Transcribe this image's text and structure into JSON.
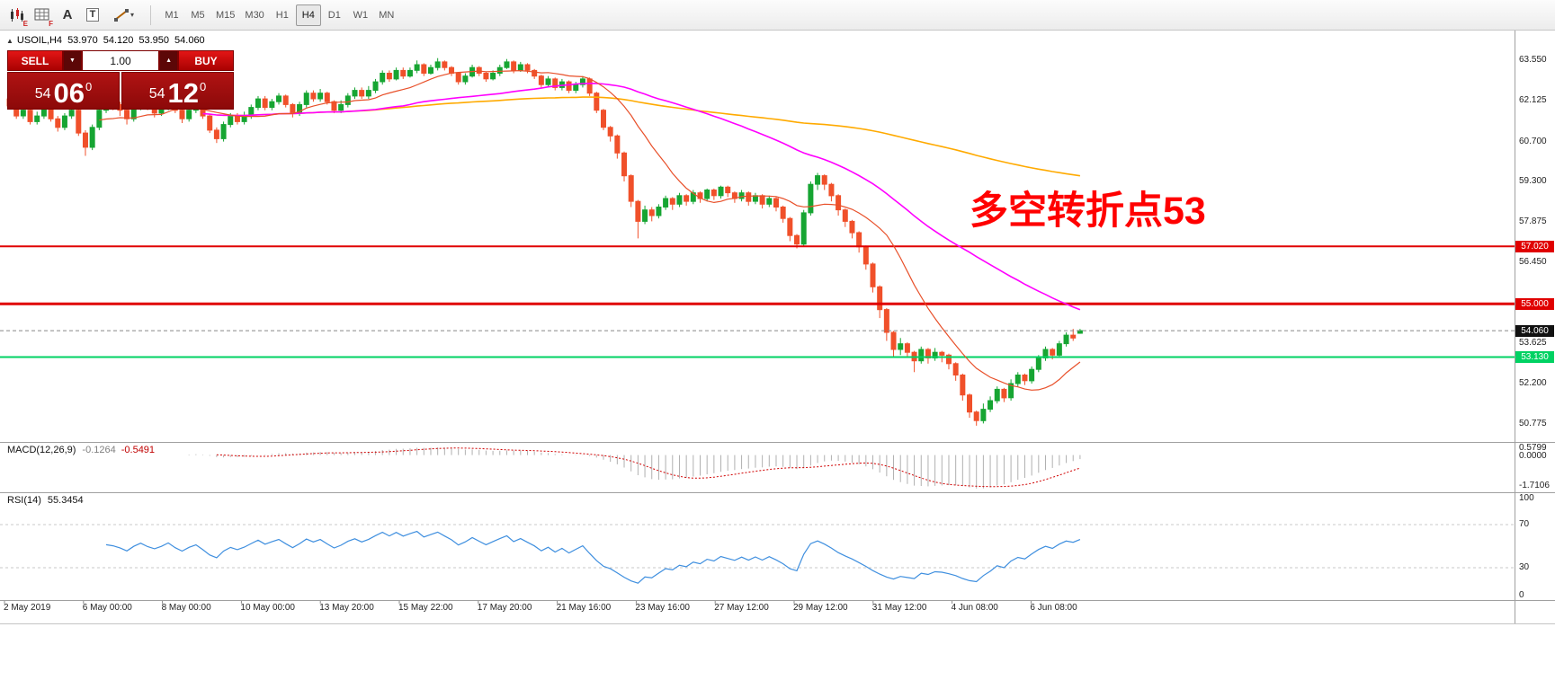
{
  "toolbar": {
    "icons": [
      {
        "name": "chart-objects-icon",
        "sub": "E"
      },
      {
        "name": "indicators-icon",
        "sub": "F"
      },
      {
        "name": "text-label-icon",
        "label": "A"
      },
      {
        "name": "text-box-icon",
        "label": "T"
      },
      {
        "name": "shapes-icon",
        "caret": "▾"
      }
    ],
    "timeframes": [
      "M1",
      "M5",
      "M15",
      "M30",
      "H1",
      "H4",
      "D1",
      "W1",
      "MN"
    ],
    "active_timeframe": "H4"
  },
  "symbol_header": {
    "collapse_icon": "▲",
    "symbol": "USOIL,H4",
    "open": "53.970",
    "high": "54.120",
    "low": "53.950",
    "close": "54.060"
  },
  "trade_panel": {
    "sell_label": "SELL",
    "buy_label": "BUY",
    "volume": "1.00",
    "caret_down": "▼",
    "caret_up": "▲",
    "bid": {
      "main": "54",
      "pips": "06",
      "sup": "0"
    },
    "ask": {
      "main": "54",
      "pips": "12",
      "sup": "0"
    }
  },
  "annotation": {
    "text": "多空转折点53",
    "color": "#ff0000"
  },
  "chart_data": {
    "type": "candlestick",
    "symbol": "USOIL",
    "timeframe": "H4",
    "y_range": [
      50.15,
      64.6
    ],
    "y_axis_labels": [
      "63.550",
      "62.125",
      "60.700",
      "59.300",
      "57.875",
      "56.450",
      "53.625",
      "52.200",
      "50.775"
    ],
    "x_axis_labels": [
      "2 May 2019",
      "6 May 00:00",
      "8 May 00:00",
      "10 May 00:00",
      "13 May 20:00",
      "15 May 22:00",
      "17 May 20:00",
      "21 May 16:00",
      "23 May 16:00",
      "27 May 12:00",
      "29 May 12:00",
      "31 May 12:00",
      "4 Jun 08:00",
      "6 Jun 08:00"
    ],
    "current_price": {
      "value": 54.06,
      "label": "54.060"
    },
    "hlines": [
      {
        "value": 57.02,
        "label": "57.020",
        "color": "#e00000",
        "width": 2
      },
      {
        "value": 55.0,
        "label": "55.000",
        "color": "#e00000",
        "width": 3
      },
      {
        "value": 53.13,
        "label": "53.130",
        "color": "#00d263",
        "width": 2
      }
    ],
    "colors": {
      "up": "#16a532",
      "down": "#f0502a"
    },
    "moving_averages": [
      {
        "name": "slow-ma",
        "period": 400,
        "start": 30,
        "color": "#ffaa00",
        "width": 1.6
      },
      {
        "name": "mid-ma",
        "period": 48,
        "start": 28,
        "color": "#ff00ff",
        "width": 1.6
      },
      {
        "name": "fast-ma",
        "period": 13,
        "start": 13,
        "color": "#e8502a",
        "width": 1.2
      }
    ],
    "candles": [
      [
        62.2,
        62.35,
        61.85,
        61.95
      ],
      [
        61.95,
        62.1,
        61.5,
        61.6
      ],
      [
        61.6,
        61.95,
        61.5,
        61.8
      ],
      [
        61.8,
        61.9,
        61.3,
        61.4
      ],
      [
        61.4,
        61.75,
        61.3,
        61.6
      ],
      [
        61.6,
        62.0,
        61.5,
        61.9
      ],
      [
        61.9,
        62.0,
        61.4,
        61.5
      ],
      [
        61.5,
        61.6,
        61.05,
        61.2
      ],
      [
        61.2,
        61.7,
        61.1,
        61.6
      ],
      [
        61.6,
        61.95,
        61.5,
        61.8
      ],
      [
        61.8,
        61.85,
        60.9,
        61.0
      ],
      [
        61.0,
        61.1,
        60.2,
        60.5
      ],
      [
        60.5,
        61.3,
        60.4,
        61.2
      ],
      [
        61.2,
        61.9,
        61.1,
        61.8
      ],
      [
        61.8,
        62.2,
        61.7,
        62.1
      ],
      [
        62.1,
        62.2,
        61.8,
        62.0
      ],
      [
        62.0,
        62.1,
        61.6,
        61.8
      ],
      [
        61.8,
        61.9,
        61.3,
        61.5
      ],
      [
        61.5,
        62.0,
        61.4,
        61.9
      ],
      [
        61.9,
        62.3,
        61.8,
        62.2
      ],
      [
        62.2,
        62.3,
        61.8,
        61.9
      ],
      [
        61.9,
        62.0,
        61.55,
        61.7
      ],
      [
        61.7,
        62.0,
        61.6,
        61.9
      ],
      [
        61.9,
        62.3,
        61.8,
        62.2
      ],
      [
        62.2,
        62.3,
        61.7,
        61.8
      ],
      [
        61.8,
        61.9,
        61.35,
        61.5
      ],
      [
        61.5,
        61.9,
        61.4,
        61.8
      ],
      [
        61.8,
        62.1,
        61.7,
        62.0
      ],
      [
        62.0,
        62.05,
        61.5,
        61.6
      ],
      [
        61.6,
        61.65,
        61.0,
        61.1
      ],
      [
        61.1,
        61.2,
        60.65,
        60.8
      ],
      [
        60.8,
        61.4,
        60.7,
        61.3
      ],
      [
        61.3,
        61.7,
        61.2,
        61.6
      ],
      [
        61.6,
        61.7,
        61.3,
        61.4
      ],
      [
        61.4,
        61.75,
        61.3,
        61.6
      ],
      [
        61.6,
        62.0,
        61.5,
        61.9
      ],
      [
        61.9,
        62.3,
        61.8,
        62.2
      ],
      [
        62.2,
        62.3,
        61.8,
        61.9
      ],
      [
        61.9,
        62.2,
        61.8,
        62.1
      ],
      [
        62.1,
        62.4,
        62.0,
        62.3
      ],
      [
        62.3,
        62.35,
        61.9,
        62.0
      ],
      [
        62.0,
        62.05,
        61.55,
        61.7
      ],
      [
        61.7,
        62.1,
        61.6,
        62.0
      ],
      [
        62.0,
        62.5,
        61.9,
        62.4
      ],
      [
        62.4,
        62.5,
        62.1,
        62.2
      ],
      [
        62.2,
        62.55,
        62.1,
        62.4
      ],
      [
        62.4,
        62.45,
        62.0,
        62.1
      ],
      [
        62.1,
        62.15,
        61.7,
        61.8
      ],
      [
        61.8,
        62.15,
        61.7,
        62.0
      ],
      [
        62.0,
        62.4,
        61.9,
        62.3
      ],
      [
        62.3,
        62.6,
        62.2,
        62.5
      ],
      [
        62.5,
        62.6,
        62.2,
        62.3
      ],
      [
        62.3,
        62.65,
        62.2,
        62.5
      ],
      [
        62.5,
        62.9,
        62.4,
        62.8
      ],
      [
        62.8,
        63.2,
        62.7,
        63.1
      ],
      [
        63.1,
        63.2,
        62.8,
        62.9
      ],
      [
        62.9,
        63.3,
        62.85,
        63.2
      ],
      [
        63.2,
        63.3,
        62.9,
        63.0
      ],
      [
        63.0,
        63.3,
        62.95,
        63.2
      ],
      [
        63.2,
        63.55,
        63.1,
        63.4
      ],
      [
        63.4,
        63.45,
        63.0,
        63.1
      ],
      [
        63.1,
        63.4,
        63.05,
        63.3
      ],
      [
        63.3,
        63.63,
        63.2,
        63.5
      ],
      [
        63.5,
        63.55,
        63.2,
        63.3
      ],
      [
        63.3,
        63.35,
        63.0,
        63.1
      ],
      [
        63.1,
        63.15,
        62.7,
        62.8
      ],
      [
        62.8,
        63.1,
        62.7,
        63.0
      ],
      [
        63.0,
        63.4,
        62.95,
        63.3
      ],
      [
        63.3,
        63.35,
        63.0,
        63.1
      ],
      [
        63.1,
        63.15,
        62.8,
        62.9
      ],
      [
        62.9,
        63.2,
        62.85,
        63.1
      ],
      [
        63.1,
        63.4,
        63.0,
        63.3
      ],
      [
        63.3,
        63.6,
        63.25,
        63.5
      ],
      [
        63.5,
        63.55,
        63.1,
        63.2
      ],
      [
        63.2,
        63.5,
        63.15,
        63.4
      ],
      [
        63.4,
        63.45,
        63.1,
        63.2
      ],
      [
        63.2,
        63.25,
        62.9,
        63.0
      ],
      [
        63.0,
        63.05,
        62.6,
        62.7
      ],
      [
        62.7,
        63.0,
        62.6,
        62.9
      ],
      [
        62.9,
        62.95,
        62.5,
        62.6
      ],
      [
        62.6,
        62.9,
        62.5,
        62.8
      ],
      [
        62.8,
        62.85,
        62.4,
        62.5
      ],
      [
        62.5,
        62.8,
        62.4,
        62.7
      ],
      [
        62.7,
        63.0,
        62.6,
        62.9
      ],
      [
        62.9,
        62.95,
        62.3,
        62.4
      ],
      [
        62.4,
        62.45,
        61.7,
        61.8
      ],
      [
        61.8,
        61.85,
        61.1,
        61.2
      ],
      [
        61.2,
        61.25,
        60.7,
        60.9
      ],
      [
        60.9,
        60.95,
        60.1,
        60.3
      ],
      [
        60.3,
        60.35,
        59.3,
        59.5
      ],
      [
        59.5,
        59.55,
        58.4,
        58.6
      ],
      [
        58.6,
        58.65,
        57.3,
        57.9
      ],
      [
        57.9,
        58.45,
        57.8,
        58.3
      ],
      [
        58.3,
        58.4,
        57.9,
        58.1
      ],
      [
        58.1,
        58.5,
        58.0,
        58.4
      ],
      [
        58.4,
        58.8,
        58.3,
        58.7
      ],
      [
        58.7,
        58.75,
        58.3,
        58.5
      ],
      [
        58.5,
        58.9,
        58.4,
        58.8
      ],
      [
        58.8,
        58.85,
        58.45,
        58.6
      ],
      [
        58.6,
        59.0,
        58.5,
        58.9
      ],
      [
        58.9,
        58.95,
        58.55,
        58.7
      ],
      [
        58.7,
        59.05,
        58.6,
        59.0
      ],
      [
        59.0,
        59.05,
        58.65,
        58.8
      ],
      [
        58.8,
        59.15,
        58.7,
        59.1
      ],
      [
        59.1,
        59.15,
        58.75,
        58.9
      ],
      [
        58.9,
        58.95,
        58.55,
        58.7
      ],
      [
        58.7,
        59.0,
        58.6,
        58.9
      ],
      [
        58.9,
        58.95,
        58.45,
        58.6
      ],
      [
        58.6,
        58.9,
        58.5,
        58.8
      ],
      [
        58.8,
        58.85,
        58.35,
        58.5
      ],
      [
        58.5,
        58.8,
        58.4,
        58.7
      ],
      [
        58.7,
        58.75,
        58.25,
        58.4
      ],
      [
        58.4,
        58.45,
        57.85,
        58.0
      ],
      [
        58.0,
        58.05,
        57.2,
        57.4
      ],
      [
        57.4,
        57.45,
        56.95,
        57.1
      ],
      [
        57.1,
        58.3,
        57.0,
        58.2
      ],
      [
        58.2,
        59.3,
        58.1,
        59.2
      ],
      [
        59.2,
        59.6,
        59.0,
        59.5
      ],
      [
        59.5,
        59.55,
        59.0,
        59.2
      ],
      [
        59.2,
        59.25,
        58.6,
        58.8
      ],
      [
        58.8,
        58.85,
        58.1,
        58.3
      ],
      [
        58.3,
        58.35,
        57.7,
        57.9
      ],
      [
        57.9,
        57.95,
        57.3,
        57.5
      ],
      [
        57.5,
        57.55,
        56.8,
        57.0
      ],
      [
        57.0,
        57.05,
        56.2,
        56.4
      ],
      [
        56.4,
        56.45,
        55.4,
        55.6
      ],
      [
        55.6,
        55.65,
        54.5,
        54.8
      ],
      [
        54.8,
        54.85,
        53.7,
        54.0
      ],
      [
        54.0,
        54.05,
        53.15,
        53.4
      ],
      [
        53.4,
        53.8,
        53.2,
        53.6
      ],
      [
        53.6,
        53.65,
        53.1,
        53.3
      ],
      [
        53.3,
        53.35,
        52.6,
        53.0
      ],
      [
        53.0,
        53.5,
        52.9,
        53.4
      ],
      [
        53.4,
        53.45,
        52.9,
        53.1
      ],
      [
        53.1,
        53.45,
        53.0,
        53.3
      ],
      [
        53.3,
        53.35,
        52.95,
        53.2
      ],
      [
        53.2,
        53.25,
        52.7,
        52.9
      ],
      [
        52.9,
        52.95,
        52.3,
        52.5
      ],
      [
        52.5,
        52.55,
        51.6,
        51.8
      ],
      [
        51.8,
        51.85,
        51.0,
        51.2
      ],
      [
        51.2,
        51.25,
        50.72,
        50.9
      ],
      [
        50.9,
        51.5,
        50.8,
        51.3
      ],
      [
        51.3,
        51.75,
        51.2,
        51.6
      ],
      [
        51.6,
        52.1,
        51.5,
        52.0
      ],
      [
        52.0,
        52.05,
        51.55,
        51.7
      ],
      [
        51.7,
        52.35,
        51.6,
        52.2
      ],
      [
        52.2,
        52.6,
        52.1,
        52.5
      ],
      [
        52.5,
        52.55,
        52.15,
        52.3
      ],
      [
        52.3,
        52.8,
        52.2,
        52.7
      ],
      [
        52.7,
        53.2,
        52.6,
        53.1
      ],
      [
        53.1,
        53.5,
        53.0,
        53.4
      ],
      [
        53.4,
        53.45,
        53.05,
        53.2
      ],
      [
        53.2,
        53.7,
        53.1,
        53.6
      ],
      [
        53.6,
        54.0,
        53.5,
        53.9
      ],
      [
        53.9,
        54.12,
        53.7,
        53.8
      ],
      [
        53.97,
        54.12,
        53.95,
        54.06
      ]
    ]
  },
  "macd": {
    "label": "MACD(12,26,9)",
    "main_value": "-0.1264",
    "signal_value": "-0.5491",
    "axis_labels": [
      "0.5799",
      "0.0000",
      "-1.7106"
    ],
    "params": {
      "fast": 12,
      "slow": 26,
      "signal": 9
    },
    "range": [
      -1.85,
      0.65
    ],
    "colors": {
      "histogram": "#b0b0b0",
      "signal": "#d00000"
    }
  },
  "rsi": {
    "label": "RSI(14)",
    "value": "55.3454",
    "period": 14,
    "axis_labels": [
      "100",
      "70",
      "30",
      "0"
    ],
    "levels": [
      70,
      30
    ],
    "range": [
      0,
      100
    ],
    "color": "#3f8fdf"
  }
}
